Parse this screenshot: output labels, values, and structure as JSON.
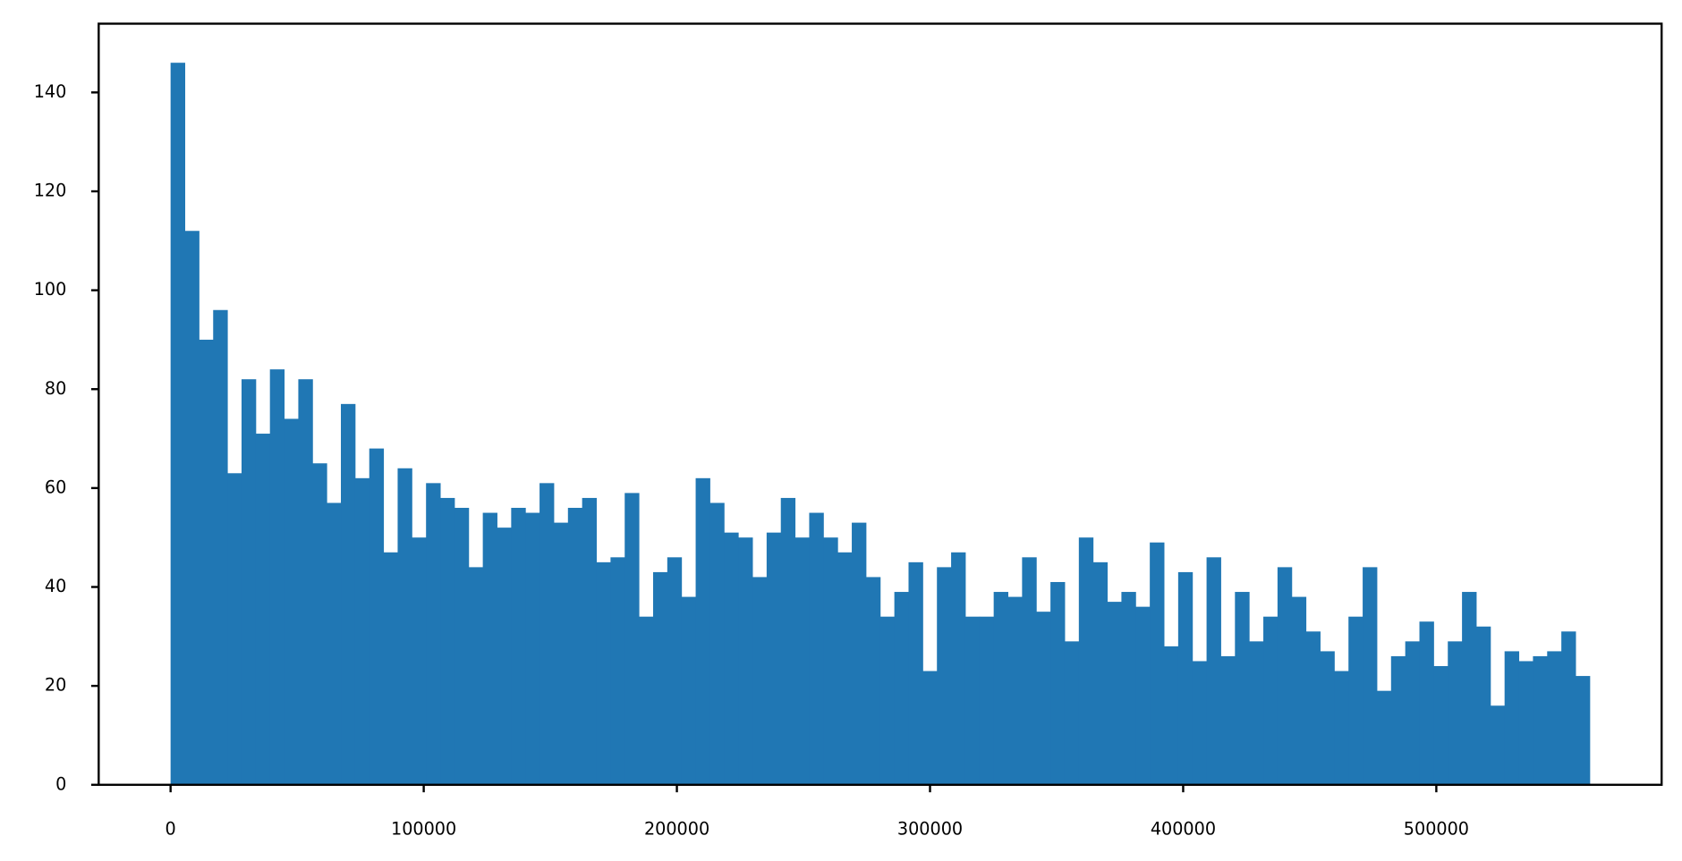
{
  "chart_data": {
    "type": "histogram",
    "color": "#2077b4",
    "bins": [
      0,
      5606,
      11212,
      16818,
      22424,
      28030,
      33636,
      39242,
      44848,
      50454,
      56060,
      61666,
      67272,
      72878,
      78484,
      84090,
      89696,
      95302,
      100908,
      106514,
      112120,
      117726,
      123332,
      128938,
      134544,
      140150,
      145756,
      151362,
      156968,
      162574,
      168180,
      173786,
      179392,
      184998,
      190604,
      196210,
      201816,
      207422,
      213028,
      218634,
      224240,
      229846,
      235452,
      241058,
      246664,
      252270,
      257876,
      263482,
      269088,
      274694,
      280300,
      285906,
      291512,
      297118,
      302724,
      308330,
      313936,
      319542,
      325148,
      330754,
      336360,
      341966,
      347572,
      353178,
      358784,
      364390,
      369996,
      375602,
      381208,
      386814,
      392420,
      398026,
      403632,
      409238,
      414844,
      420450,
      426056,
      431662,
      437268,
      442874,
      448480,
      454086,
      459692,
      465298,
      470904,
      476510,
      482116,
      487722,
      493328,
      498934,
      504540,
      510146,
      515752,
      521358,
      526964,
      532570,
      538176,
      543782,
      549388,
      554994,
      560600
    ],
    "values": [
      146,
      112,
      90,
      96,
      63,
      82,
      71,
      84,
      74,
      82,
      65,
      57,
      77,
      62,
      68,
      47,
      64,
      50,
      61,
      58,
      56,
      44,
      55,
      52,
      56,
      55,
      61,
      53,
      56,
      58,
      45,
      46,
      59,
      34,
      43,
      46,
      38,
      62,
      57,
      51,
      50,
      42,
      51,
      58,
      50,
      55,
      50,
      47,
      53,
      42,
      34,
      39,
      45,
      23,
      44,
      47,
      34,
      34,
      39,
      38,
      46,
      35,
      41,
      29,
      50,
      45,
      37,
      39,
      36,
      49,
      28,
      43,
      25,
      46,
      26,
      39,
      29,
      34,
      44,
      38,
      31,
      27,
      23,
      34,
      44,
      19,
      26,
      29,
      33,
      24,
      29,
      39,
      32,
      16,
      27,
      25,
      26,
      27,
      31,
      22
    ],
    "xlim": [
      -28400,
      589000
    ],
    "ylim": [
      0,
      153.9
    ],
    "xticks": [
      0,
      100000,
      200000,
      300000,
      400000,
      500000
    ],
    "yticks": [
      0,
      20,
      40,
      60,
      80,
      100,
      120,
      140
    ]
  }
}
